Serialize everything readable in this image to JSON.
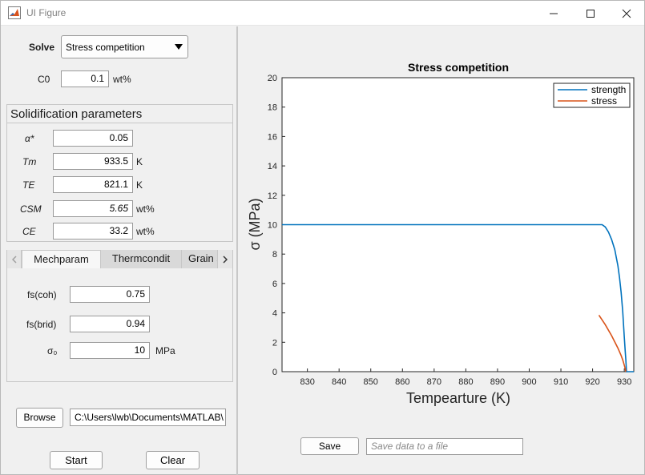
{
  "window": {
    "title": "UI Figure",
    "icon": "matlab-logo-icon",
    "controls": [
      "minimize-icon",
      "maximize-icon",
      "close-icon"
    ]
  },
  "solve": {
    "label": "Solve",
    "selected": "Stress competition",
    "icon": "dropdown-arrow-icon"
  },
  "c0": {
    "label": "C0",
    "value": "0.1",
    "unit": "wt%"
  },
  "solidification": {
    "title": "Solidification parameters",
    "params": [
      {
        "label": "α*",
        "value": "0.05",
        "unit": ""
      },
      {
        "label": "Tm",
        "value": "933.5",
        "unit": "K"
      },
      {
        "label": "TE",
        "value": "821.1",
        "unit": "K"
      },
      {
        "label": "CSM",
        "value": "5.65",
        "unit": "wt%"
      },
      {
        "label": "CE",
        "value": "33.2",
        "unit": "wt%"
      }
    ]
  },
  "tabs": {
    "items": [
      "Mechparam",
      "Thermcondit",
      "Grain s"
    ],
    "active": "Mechparam",
    "mech": [
      {
        "label": "fs(coh)",
        "value": "0.75",
        "unit": ""
      },
      {
        "label": "fs(brid)",
        "value": "0.94",
        "unit": ""
      },
      {
        "label": "σ₀",
        "value": "10",
        "unit": "MPa"
      }
    ]
  },
  "browse": {
    "label": "Browse",
    "path": "C:\\Users\\lwb\\Documents\\MATLAB\\"
  },
  "start_label": "Start",
  "clear_label": "Clear",
  "save": {
    "label": "Save",
    "placeholder": "Save data to a file"
  },
  "chart_data": {
    "type": "line",
    "title": "Stress competition",
    "xlabel": "Tempearture (K)",
    "ylabel": "σ (MPa)",
    "xlim": [
      822,
      933
    ],
    "ylim": [
      0,
      20
    ],
    "xticks": [
      830,
      840,
      850,
      860,
      870,
      880,
      890,
      900,
      910,
      920,
      930
    ],
    "yticks": [
      0,
      2,
      4,
      6,
      8,
      10,
      12,
      14,
      16,
      18,
      20
    ],
    "grid": false,
    "legend_position": "top-right",
    "series": [
      {
        "name": "strength",
        "color": "#0072BD",
        "x": [
          822,
          900,
          923,
          924,
          925,
          926,
          927,
          928,
          928.5,
          929,
          929.5,
          930,
          930.3,
          930.5,
          930.7,
          933
        ],
        "y": [
          10,
          10,
          10,
          9.85,
          9.5,
          9.0,
          8.3,
          7.2,
          6.4,
          5.4,
          4.1,
          2.4,
          1.4,
          0.8,
          0,
          0
        ]
      },
      {
        "name": "stress",
        "color": "#D95319",
        "x": [
          922,
          924,
          926,
          928,
          929,
          929.5,
          930,
          930.3,
          930.5
        ],
        "y": [
          3.85,
          3.2,
          2.45,
          1.6,
          1.1,
          0.8,
          0.45,
          0.2,
          0
        ]
      }
    ]
  }
}
